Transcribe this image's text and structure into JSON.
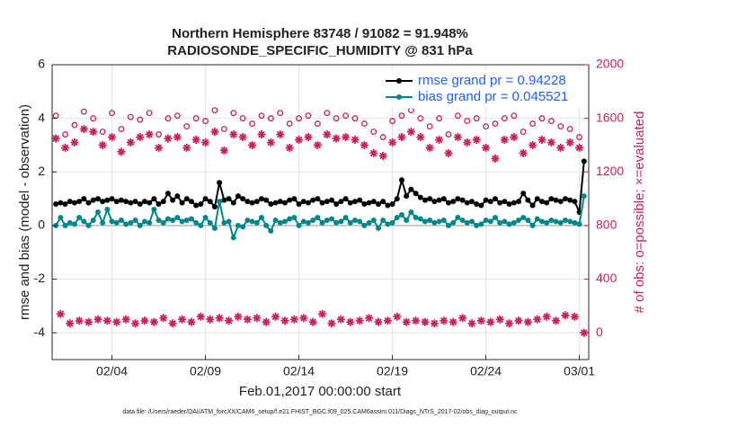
{
  "chart_data": {
    "type": "line",
    "title": "Northern Hemisphere 83748 / 91082 = 91.948%",
    "subtitle": "RADIOSONDE_SPECIFIC_HUMIDITY @ 831 hPa",
    "xlabel": "Feb.01,2017 00:00:00 start",
    "ylabel": "rmse and bias (model - observation)",
    "y2label": "# of obs: o=possible; ×=evaluated",
    "footnote": "data file: /Users/raeder/DAI/ATM_forcXX/CAM6_setup/f.e21.FHIST_BGC.f09_025.CAM6assim.011/Diags_NTrS_2017-02/obs_diag_output.nc",
    "xlim": [
      -0.2,
      28.5
    ],
    "xticks": [
      {
        "value": 3,
        "label": "02/04"
      },
      {
        "value": 8,
        "label": "02/09"
      },
      {
        "value": 13,
        "label": "02/14"
      },
      {
        "value": 18,
        "label": "02/19"
      },
      {
        "value": 23,
        "label": "02/24"
      },
      {
        "value": 28,
        "label": "03/01"
      }
    ],
    "ylim": [
      -5,
      6
    ],
    "yticks": [
      -4,
      -2,
      0,
      2,
      4,
      6
    ],
    "y2lim": [
      -200,
      2000
    ],
    "y2ticks": [
      0,
      400,
      800,
      1200,
      1600,
      2000
    ],
    "grid": true,
    "legend": "upper right",
    "series": [
      {
        "name": "rmse grand pr = 0.94228",
        "color": "#000000",
        "marker": "dot",
        "x": [
          0,
          0.25,
          0.5,
          0.75,
          1,
          1.25,
          1.5,
          1.75,
          2,
          2.25,
          2.5,
          2.75,
          3,
          3.25,
          3.5,
          3.75,
          4,
          4.25,
          4.5,
          4.75,
          5,
          5.25,
          5.5,
          5.75,
          6,
          6.25,
          6.5,
          6.75,
          7,
          7.25,
          7.5,
          7.75,
          8,
          8.25,
          8.5,
          8.75,
          9,
          9.25,
          9.5,
          9.75,
          10,
          10.25,
          10.5,
          10.75,
          11,
          11.25,
          11.5,
          11.75,
          12,
          12.25,
          12.5,
          12.75,
          13,
          13.25,
          13.5,
          13.75,
          14,
          14.25,
          14.5,
          14.75,
          15,
          15.25,
          15.5,
          15.75,
          16,
          16.25,
          16.5,
          16.75,
          17,
          17.25,
          17.5,
          17.75,
          18,
          18.25,
          18.5,
          18.75,
          19,
          19.25,
          19.5,
          19.75,
          20,
          20.25,
          20.5,
          20.75,
          21,
          21.25,
          21.5,
          21.75,
          22,
          22.25,
          22.5,
          22.75,
          23,
          23.25,
          23.5,
          23.75,
          24,
          24.25,
          24.5,
          24.75,
          25,
          25.25,
          25.5,
          25.75,
          26,
          26.25,
          26.5,
          26.75,
          27,
          27.25,
          27.5,
          27.75,
          28,
          28.25
        ],
        "values": [
          0.8,
          0.85,
          0.8,
          0.9,
          0.85,
          0.9,
          1.0,
          0.85,
          0.95,
          1.0,
          0.9,
          0.95,
          1.0,
          0.9,
          0.95,
          0.9,
          0.85,
          0.9,
          0.8,
          0.9,
          0.85,
          1.0,
          0.8,
          0.9,
          1.2,
          0.95,
          1.1,
          0.85,
          1.0,
          0.9,
          0.75,
          0.8,
          1.0,
          0.9,
          0.7,
          1.6,
          0.95,
          1.0,
          0.85,
          1.1,
          1.0,
          0.9,
          0.85,
          0.9,
          1.0,
          0.95,
          0.8,
          0.85,
          0.9,
          0.85,
          0.95,
          1.0,
          0.8,
          0.9,
          0.85,
          0.95,
          1.0,
          0.85,
          0.9,
          0.95,
          0.8,
          0.9,
          1.0,
          0.85,
          0.9,
          0.95,
          0.8,
          0.85,
          0.9,
          0.8,
          0.9,
          0.75,
          0.8,
          1.0,
          1.7,
          1.1,
          1.35,
          1.2,
          1.05,
          0.95,
          1.0,
          0.9,
          0.95,
          1.0,
          0.85,
          0.9,
          1.0,
          0.95,
          0.85,
          0.9,
          0.8,
          0.75,
          0.95,
          0.9,
          1.0,
          0.85,
          0.9,
          0.8,
          0.85,
          0.9,
          1.2,
          0.95,
          0.75,
          1.0,
          0.9,
          0.85,
          1.0,
          0.95,
          0.9,
          1.0,
          0.95,
          0.9,
          0.5,
          2.4
        ]
      },
      {
        "name": "bias grand pr = 0.045521",
        "color": "#00878a",
        "marker": "dot",
        "x": [
          0,
          0.25,
          0.5,
          0.75,
          1,
          1.25,
          1.5,
          1.75,
          2,
          2.25,
          2.5,
          2.75,
          3,
          3.25,
          3.5,
          3.75,
          4,
          4.25,
          4.5,
          4.75,
          5,
          5.25,
          5.5,
          5.75,
          6,
          6.25,
          6.5,
          6.75,
          7,
          7.25,
          7.5,
          7.75,
          8,
          8.25,
          8.5,
          8.75,
          9,
          9.25,
          9.5,
          9.75,
          10,
          10.25,
          10.5,
          10.75,
          11,
          11.25,
          11.5,
          11.75,
          12,
          12.25,
          12.5,
          12.75,
          13,
          13.25,
          13.5,
          13.75,
          14,
          14.25,
          14.5,
          14.75,
          15,
          15.25,
          15.5,
          15.75,
          16,
          16.25,
          16.5,
          16.75,
          17,
          17.25,
          17.5,
          17.75,
          18,
          18.25,
          18.5,
          18.75,
          19,
          19.25,
          19.5,
          19.75,
          20,
          20.25,
          20.5,
          20.75,
          21,
          21.25,
          21.5,
          21.75,
          22,
          22.25,
          22.5,
          22.75,
          23,
          23.25,
          23.5,
          23.75,
          24,
          24.25,
          24.5,
          24.75,
          25,
          25.25,
          25.5,
          25.75,
          26,
          26.25,
          26.5,
          26.75,
          27,
          27.25,
          27.5,
          27.75,
          28,
          28.25
        ],
        "values": [
          0,
          0.3,
          0,
          0.1,
          0.05,
          0.3,
          0.15,
          0,
          0.2,
          0.5,
          0.1,
          0.6,
          0.15,
          0.1,
          0.2,
          0.05,
          0.1,
          0.2,
          0,
          0.15,
          0.1,
          0.6,
          0.2,
          0.1,
          0.25,
          0.2,
          0.3,
          0.15,
          0.2,
          0.25,
          0.1,
          0,
          0.3,
          0.1,
          -0.1,
          0.9,
          0.1,
          0.15,
          -0.45,
          0,
          -0.05,
          0.2,
          0.15,
          0.1,
          0.3,
          0,
          -0.2,
          0.2,
          0.1,
          0.15,
          0.25,
          0.3,
          0,
          0.15,
          0.1,
          0.2,
          0.3,
          0.1,
          0.2,
          0.25,
          0.1,
          0.15,
          0.3,
          0.1,
          0.2,
          0.15,
          0,
          0.1,
          0.2,
          -0.1,
          0.2,
          0.05,
          0.1,
          0.3,
          0.4,
          0.2,
          0.5,
          0.3,
          0.25,
          0.15,
          0.2,
          0.1,
          0.15,
          0.2,
          0,
          0.1,
          0.3,
          0.2,
          0.1,
          0.15,
          0,
          0.05,
          0.2,
          0.15,
          0.3,
          0.1,
          0.15,
          0.05,
          0.1,
          0.2,
          0.3,
          0.2,
          0,
          0.25,
          0.15,
          0.1,
          0.2,
          0.15,
          0.1,
          0.2,
          0.15,
          0.1,
          0.05,
          1.1
        ]
      },
      {
        "color": "#cc1f5e",
        "marker": "circle",
        "axis": "y2",
        "x": [
          0,
          0.5,
          1,
          1.5,
          2,
          2.5,
          3,
          3.5,
          4,
          4.5,
          5,
          5.5,
          6,
          6.5,
          7,
          7.5,
          8,
          8.5,
          9,
          9.5,
          10,
          10.5,
          11,
          11.5,
          12,
          12.5,
          13,
          13.5,
          14,
          14.5,
          15,
          15.5,
          16,
          16.5,
          17,
          17.5,
          18,
          18.5,
          19,
          19.5,
          20,
          20.5,
          21,
          21.5,
          22,
          22.5,
          23,
          23.5,
          24,
          24.5,
          25,
          25.5,
          26,
          26.5,
          27,
          27.5,
          28
        ],
        "values": [
          1620,
          1480,
          1550,
          1650,
          1600,
          1500,
          1640,
          1520,
          1610,
          1590,
          1640,
          1480,
          1600,
          1620,
          1540,
          1600,
          1580,
          1660,
          1520,
          1640,
          1600,
          1560,
          1620,
          1600,
          1640,
          1560,
          1600,
          1620,
          1560,
          1640,
          1600,
          1620,
          1600,
          1560,
          1500,
          1460,
          1580,
          1620,
          1660,
          1600,
          1540,
          1600,
          1480,
          1620,
          1580,
          1600,
          1540,
          1560,
          1600,
          1620,
          1500,
          1560,
          1600,
          1580,
          1540,
          1520,
          1460
        ]
      },
      {
        "color": "#cc1f5e",
        "marker": "star",
        "axis": "y2",
        "x": [
          0,
          0.5,
          1,
          1.5,
          2,
          2.5,
          3,
          3.5,
          4,
          4.5,
          5,
          5.5,
          6,
          6.5,
          7,
          7.5,
          8,
          8.5,
          9,
          9.5,
          10,
          10.5,
          11,
          11.5,
          12,
          12.5,
          13,
          13.5,
          14,
          14.5,
          15,
          15.5,
          16,
          16.5,
          17,
          17.5,
          18,
          18.5,
          19,
          19.5,
          20,
          20.5,
          21,
          21.5,
          22,
          22.5,
          23,
          23.5,
          24,
          24.5,
          25,
          25.5,
          26,
          26.5,
          27,
          27.5,
          28
        ],
        "values": [
          1450,
          1380,
          1420,
          1520,
          1500,
          1400,
          1460,
          1350,
          1420,
          1460,
          1480,
          1380,
          1450,
          1460,
          1380,
          1440,
          1420,
          1500,
          1360,
          1480,
          1460,
          1400,
          1480,
          1420,
          1480,
          1380,
          1440,
          1460,
          1400,
          1480,
          1450,
          1460,
          1440,
          1400,
          1340,
          1320,
          1420,
          1460,
          1500,
          1460,
          1380,
          1440,
          1340,
          1460,
          1420,
          1440,
          1380,
          1300,
          1440,
          1460,
          1340,
          1400,
          1440,
          1420,
          1380,
          1420,
          1380
        ]
      },
      {
        "color": "#cc1f5e",
        "marker": "star",
        "axis": "y2",
        "x": [
          0.25,
          0.75,
          1.25,
          1.75,
          2.25,
          2.75,
          3.25,
          3.75,
          4.25,
          4.75,
          5.25,
          5.75,
          6.25,
          6.75,
          7.25,
          7.75,
          8.25,
          8.75,
          9.25,
          9.75,
          10.25,
          10.75,
          11.25,
          11.75,
          12.25,
          12.75,
          13.25,
          13.75,
          14.25,
          14.75,
          15.25,
          15.75,
          16.25,
          16.75,
          17.25,
          17.75,
          18.25,
          18.75,
          19.25,
          19.75,
          20.25,
          20.75,
          21.25,
          21.75,
          22.25,
          22.75,
          23.25,
          23.75,
          24.25,
          24.75,
          25.25,
          25.75,
          26.25,
          26.75,
          27.25,
          27.75,
          28.25
        ],
        "values": [
          140,
          70,
          90,
          80,
          100,
          90,
          80,
          100,
          70,
          90,
          80,
          110,
          70,
          100,
          80,
          120,
          100,
          110,
          90,
          120,
          100,
          110,
          80,
          120,
          90,
          100,
          110,
          80,
          140,
          70,
          100,
          80,
          90,
          110,
          80,
          90,
          120,
          80,
          90,
          80,
          70,
          90,
          80,
          110,
          70,
          90,
          80,
          100,
          70,
          90,
          80,
          100,
          120,
          90,
          130,
          120,
          0
        ]
      }
    ]
  }
}
